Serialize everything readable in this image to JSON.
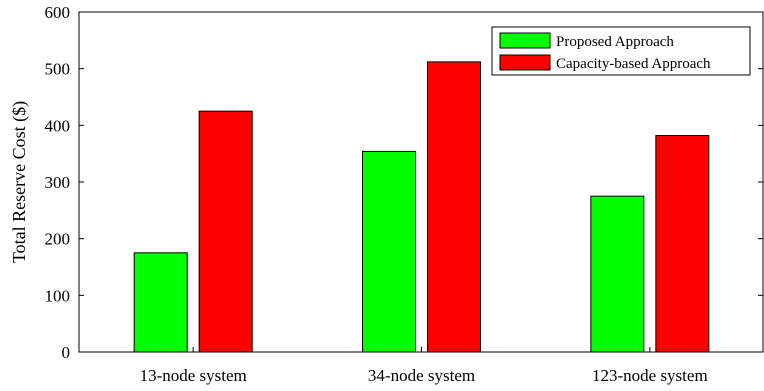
{
  "chart_data": {
    "type": "bar",
    "categories": [
      "13-node system",
      "34-node system",
      "123-node system"
    ],
    "series": [
      {
        "name": "Proposed Approach",
        "color": "#00ff00",
        "values": [
          175,
          354,
          275
        ]
      },
      {
        "name": "Capacity-based Approach",
        "color": "#ff0000",
        "values": [
          425,
          512,
          382
        ]
      }
    ],
    "ylabel": "Total Reserve Cost ($)",
    "xlabel": "",
    "title": "",
    "ylim": [
      0,
      600
    ],
    "yticks": [
      0,
      100,
      200,
      300,
      400,
      500,
      600
    ],
    "grid": false,
    "legend_position": "top-right"
  }
}
